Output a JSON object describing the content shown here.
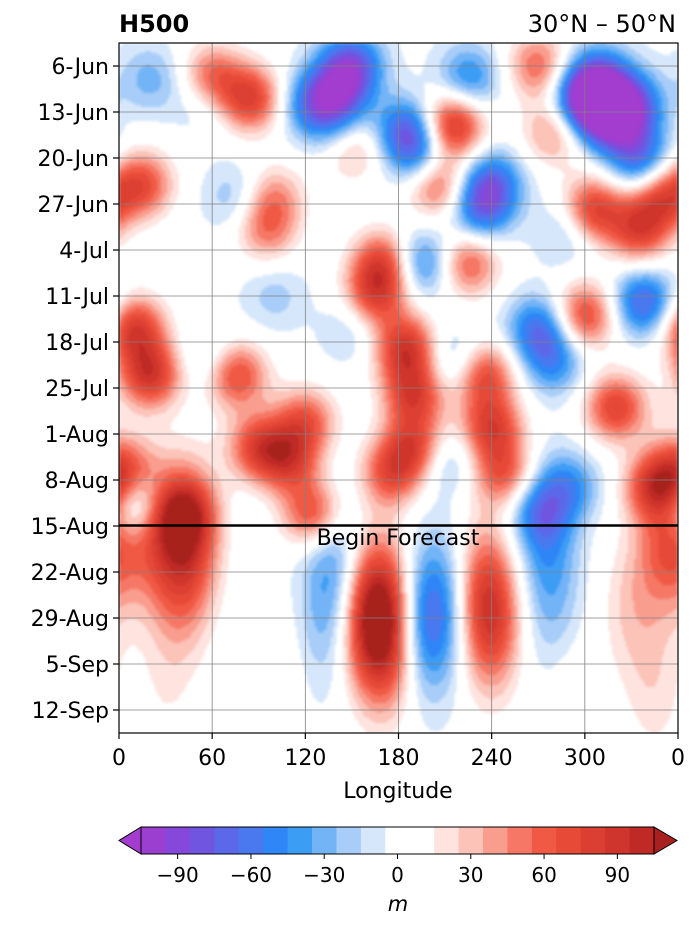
{
  "chart_data": {
    "type": "heatmap",
    "title_left": "H500",
    "title_right": "30°N – 50°N",
    "xlabel": "Longitude",
    "ylabel": "",
    "x_ticks": [
      "0",
      "60",
      "120",
      "180",
      "240",
      "300",
      "0"
    ],
    "x_range_deg": [
      0,
      360
    ],
    "y_ticks": [
      "6-Jun",
      "13-Jun",
      "20-Jun",
      "27-Jun",
      "4-Jul",
      "11-Jul",
      "18-Jul",
      "25-Jul",
      "1-Aug",
      "8-Aug",
      "15-Aug",
      "22-Aug",
      "29-Aug",
      "5-Sep",
      "12-Sep"
    ],
    "y_range_days_from_6jun": [
      -3.5,
      101.5
    ],
    "grid": true,
    "forecast_line": {
      "label": "Begin Forecast",
      "date": "15-Aug"
    },
    "colorbar": {
      "label": "m",
      "ticks": [
        "−90",
        "−60",
        "−30",
        "0",
        "30",
        "60",
        "90"
      ],
      "levels": [
        -105,
        -95,
        -85,
        -75,
        -65,
        -55,
        -45,
        -35,
        -25,
        -15,
        -5,
        5,
        15,
        25,
        35,
        45,
        55,
        65,
        75,
        85,
        95,
        105
      ],
      "colors": [
        "#9b3fd0",
        "#8548da",
        "#6f55e0",
        "#5b68ea",
        "#4a78ef",
        "#2f86f6",
        "#3c9df5",
        "#73b4f7",
        "#a7cdf8",
        "#d6e7fb",
        "#ffffff",
        "#ffffff",
        "#fee3df",
        "#fcc3b8",
        "#f99d8e",
        "#f67765",
        "#f05a45",
        "#e74a37",
        "#db3f31",
        "#cf352c",
        "#bf2a26",
        "#b22222"
      ],
      "under_color": "#a33ccf",
      "over_color": "#a8201f"
    },
    "anomaly_features": [
      {
        "lon": 15,
        "day": 18,
        "value": 65
      },
      {
        "lon": 10,
        "day": 40,
        "value": 80
      },
      {
        "lon": 20,
        "day": 47,
        "value": 85
      },
      {
        "lon": 5,
        "day": 62,
        "value": 60
      },
      {
        "lon": 40,
        "day": 68,
        "value": 55
      },
      {
        "lon": 45,
        "day": 72,
        "value": 75
      },
      {
        "lon": 60,
        "day": 2,
        "value": 65
      },
      {
        "lon": 85,
        "day": 5,
        "value": 75
      },
      {
        "lon": 75,
        "day": 47,
        "value": 75
      },
      {
        "lon": 90,
        "day": 58,
        "value": 70
      },
      {
        "lon": 110,
        "day": 60,
        "value": 65
      },
      {
        "lon": 120,
        "day": 54,
        "value": 60
      },
      {
        "lon": 125,
        "day": 68,
        "value": 70
      },
      {
        "lon": 95,
        "day": 25,
        "value": 45
      },
      {
        "lon": 100,
        "day": 20,
        "value": 40
      },
      {
        "lon": 150,
        "day": 12,
        "value": 55
      },
      {
        "lon": 170,
        "day": 30,
        "value": 70
      },
      {
        "lon": 165,
        "day": 35,
        "value": 65
      },
      {
        "lon": 185,
        "day": 43,
        "value": 85
      },
      {
        "lon": 190,
        "day": 50,
        "value": 75
      },
      {
        "lon": 190,
        "day": 58,
        "value": 70
      },
      {
        "lon": 175,
        "day": 62,
        "value": 60
      },
      {
        "lon": 215,
        "day": 9,
        "value": 90
      },
      {
        "lon": 205,
        "day": 18,
        "value": 65
      },
      {
        "lon": 225,
        "day": 30,
        "value": 60
      },
      {
        "lon": 235,
        "day": 47,
        "value": 70
      },
      {
        "lon": 240,
        "day": 55,
        "value": 75
      },
      {
        "lon": 248,
        "day": 62,
        "value": 60
      },
      {
        "lon": 270,
        "day": 0,
        "value": 55
      },
      {
        "lon": 280,
        "day": 10,
        "value": 45
      },
      {
        "lon": 305,
        "day": 22,
        "value": 80
      },
      {
        "lon": 300,
        "day": 38,
        "value": 70
      },
      {
        "lon": 320,
        "day": 52,
        "value": 75
      },
      {
        "lon": 335,
        "day": 25,
        "value": 70
      },
      {
        "lon": 350,
        "day": 20,
        "value": 65
      },
      {
        "lon": 345,
        "day": 64,
        "value": 65
      },
      {
        "lon": 355,
        "day": 71,
        "value": 75
      },
      {
        "lon": 25,
        "day": 72,
        "value": 45
      },
      {
        "lon": 150,
        "day": 0,
        "value": -75
      },
      {
        "lon": 140,
        "day": 4,
        "value": -60
      },
      {
        "lon": 125,
        "day": 6,
        "value": -55
      },
      {
        "lon": 145,
        "day": 10,
        "value": -40
      },
      {
        "lon": 185,
        "day": 10,
        "value": -70
      },
      {
        "lon": 195,
        "day": 14,
        "value": -45
      },
      {
        "lon": 240,
        "day": 18,
        "value": -65
      },
      {
        "lon": 232,
        "day": 22,
        "value": -55
      },
      {
        "lon": 225,
        "day": 2,
        "value": -50
      },
      {
        "lon": 300,
        "day": 5,
        "value": -100
      },
      {
        "lon": 315,
        "day": 8,
        "value": -80
      },
      {
        "lon": 330,
        "day": 6,
        "value": -75
      },
      {
        "lon": 335,
        "day": 14,
        "value": -65
      },
      {
        "lon": 310,
        "day": 2,
        "value": -60
      },
      {
        "lon": 20,
        "day": 2,
        "value": -30
      },
      {
        "lon": 55,
        "day": 5,
        "value": -25
      },
      {
        "lon": 75,
        "day": 20,
        "value": -25
      },
      {
        "lon": 195,
        "day": 30,
        "value": -55
      },
      {
        "lon": 270,
        "day": 40,
        "value": -60
      },
      {
        "lon": 280,
        "day": 45,
        "value": -45
      },
      {
        "lon": 338,
        "day": 36,
        "value": -70
      },
      {
        "lon": 290,
        "day": 25,
        "value": -30
      },
      {
        "lon": 60,
        "day": 45,
        "value": -25
      },
      {
        "lon": 215,
        "day": 45,
        "value": -35
      },
      {
        "lon": 210,
        "day": 60,
        "value": -30
      },
      {
        "lon": 150,
        "day": 40,
        "value": -20
      },
      {
        "lon": 10,
        "day": 65,
        "value": -45
      },
      {
        "lon": 5,
        "day": 68,
        "value": -40
      },
      {
        "lon": 290,
        "day": 64,
        "value": -40
      },
      {
        "lon": 270,
        "day": 68,
        "value": -35
      },
      {
        "lon": 275,
        "day": 72,
        "value": -40
      },
      {
        "lon": 100,
        "day": 35,
        "value": -20
      },
      {
        "lon": 140,
        "day": 75,
        "value": -35
      },
      {
        "lon": 160,
        "day": 85,
        "value": 55
      },
      {
        "lon": 168,
        "day": 82,
        "value": 65
      },
      {
        "lon": 175,
        "day": 88,
        "value": 50
      },
      {
        "lon": 240,
        "day": 85,
        "value": 55
      },
      {
        "lon": 235,
        "day": 80,
        "value": 50
      },
      {
        "lon": 195,
        "day": 85,
        "value": -55
      },
      {
        "lon": 210,
        "day": 82,
        "value": -35
      },
      {
        "lon": 135,
        "day": 85,
        "value": -25
      },
      {
        "lon": 280,
        "day": 85,
        "value": -20
      },
      {
        "lon": 40,
        "day": 82,
        "value": 20
      },
      {
        "lon": 330,
        "day": 82,
        "value": 25
      },
      {
        "lon": 345,
        "day": 95,
        "value": 20
      },
      {
        "lon": 290,
        "day": 95,
        "value": 15
      },
      {
        "lon": 30,
        "day": 95,
        "value": 12
      },
      {
        "lon": 100,
        "day": 92,
        "value": 12
      }
    ]
  }
}
